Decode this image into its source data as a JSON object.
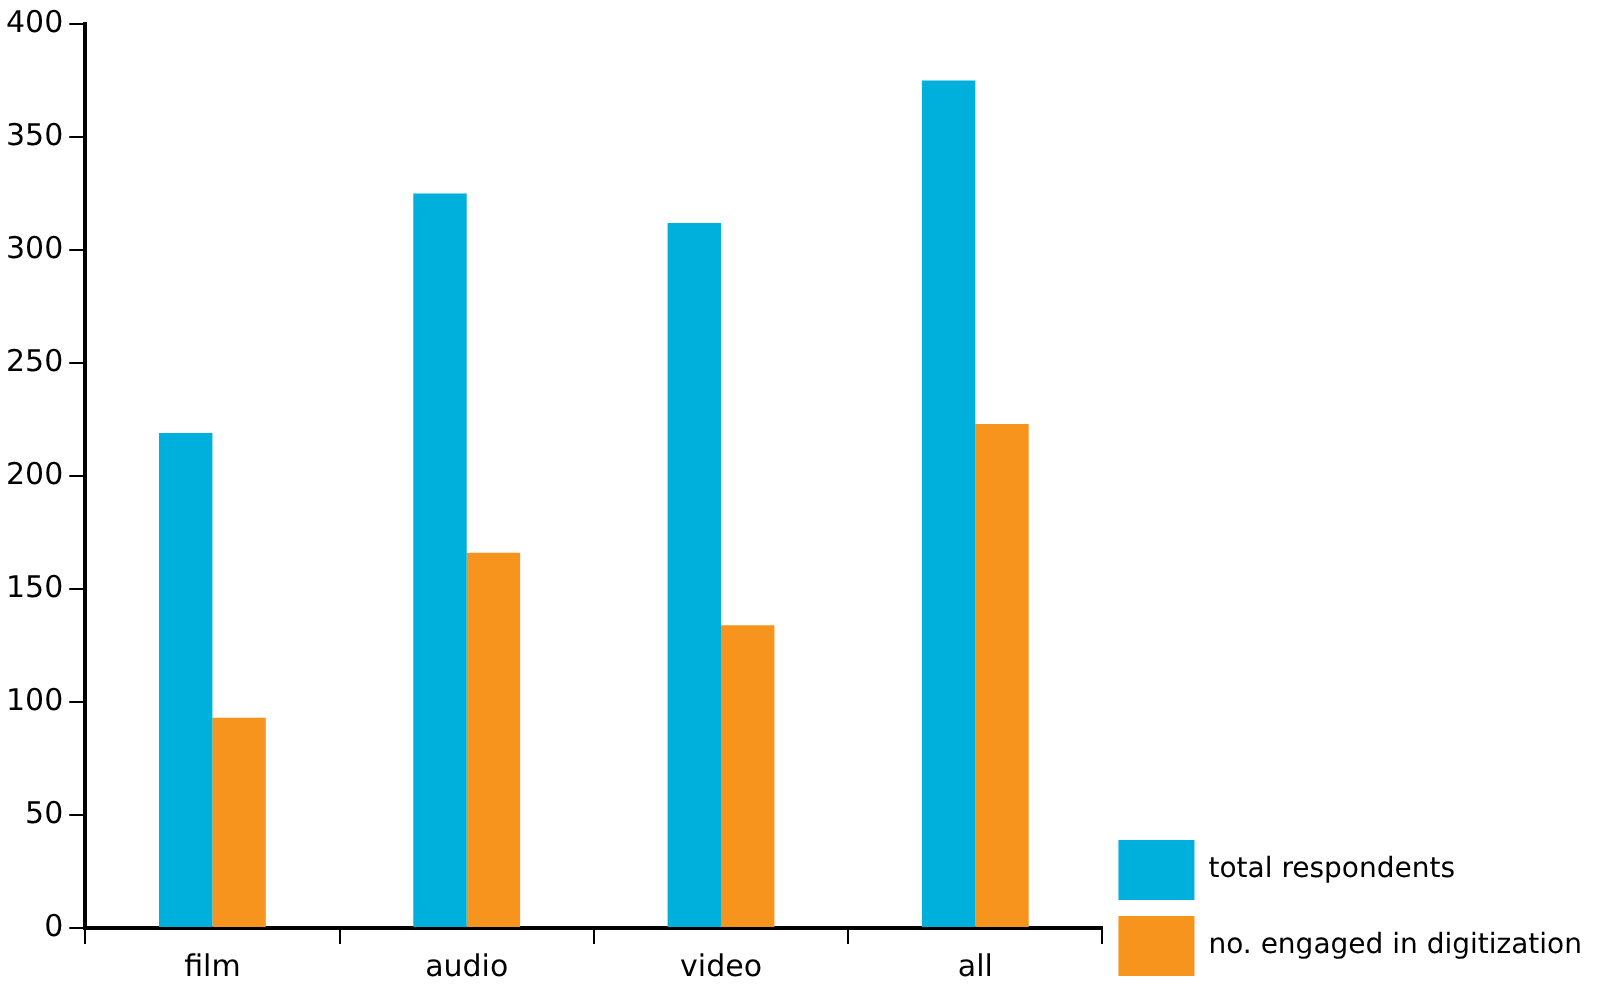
{
  "chart_data": {
    "type": "bar",
    "categories": [
      "film",
      "audio",
      "video",
      "all"
    ],
    "series": [
      {
        "name": "total respondents",
        "color": "#00b0dc",
        "values": [
          219,
          325,
          312,
          375
        ]
      },
      {
        "name": "no. engaged in digitization",
        "color": "#f7941d",
        "values": [
          93,
          166,
          134,
          223
        ]
      }
    ],
    "ylim": [
      0,
      400
    ],
    "yticks": [
      0,
      50,
      100,
      150,
      200,
      250,
      300,
      350,
      400
    ],
    "grid": false,
    "legend": "bottom right"
  }
}
